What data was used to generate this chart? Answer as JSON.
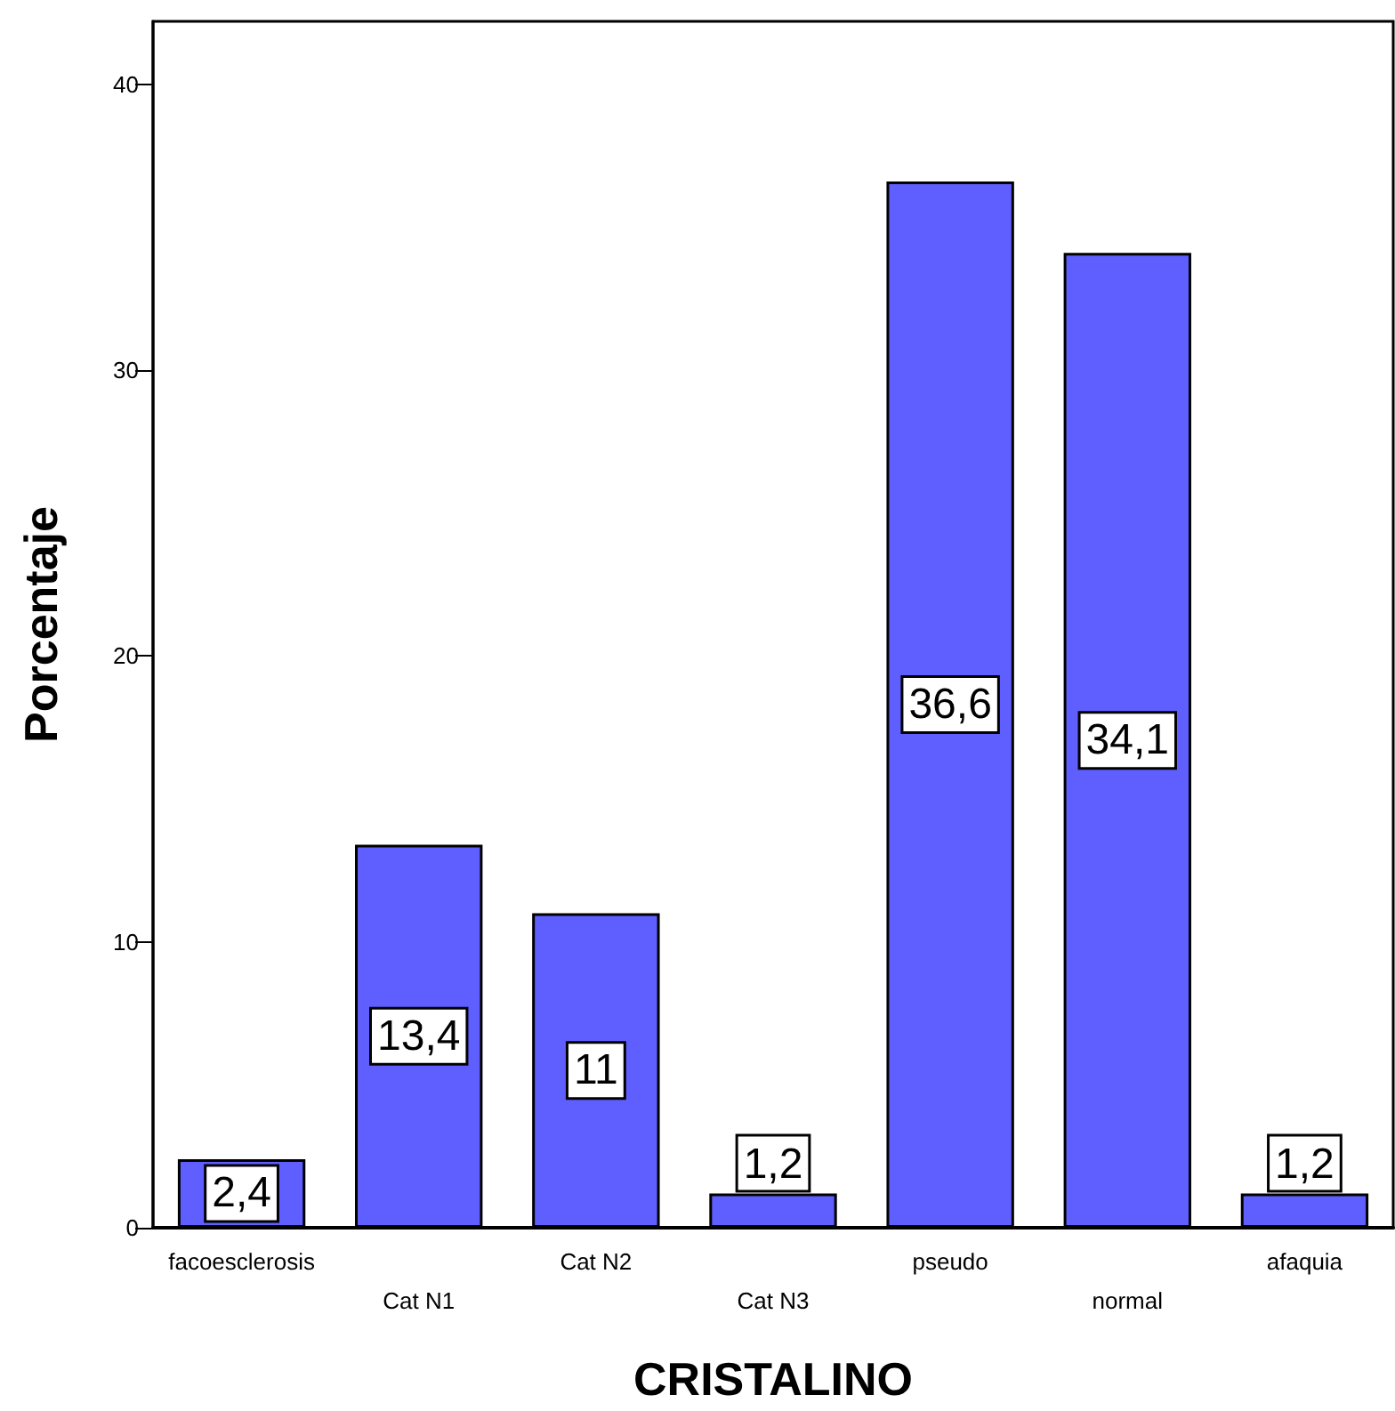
{
  "chart_data": {
    "type": "bar",
    "xlabel": "CRISTALINO",
    "ylabel": "Porcentaje",
    "categories": [
      "facoesclerosis",
      "Cat N1",
      "Cat N2",
      "Cat N3",
      "pseudo",
      "normal",
      "afaquia"
    ],
    "values": [
      2.4,
      13.4,
      11,
      1.2,
      36.6,
      34.1,
      1.2
    ],
    "value_labels": [
      "2,4",
      "13,4",
      "11",
      "1,2",
      "36,6",
      "34,1",
      "1,2"
    ],
    "color": "#5f5fff",
    "ylim": [
      0,
      42.2
    ],
    "yticks": [
      0,
      10,
      20,
      30,
      40
    ],
    "grid": false
  }
}
